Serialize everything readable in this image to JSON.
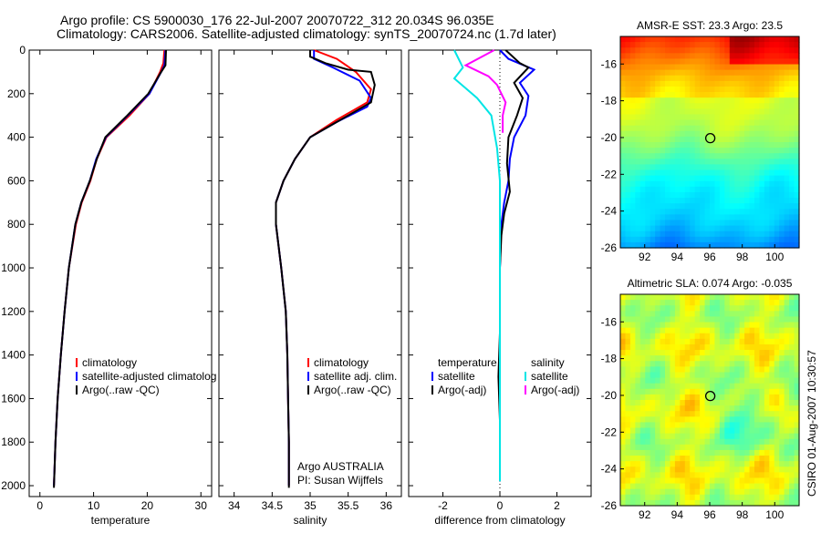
{
  "title_line1": "Argo profile: CS 5900030_176 22-Jul-2007 20070722_312 20.034S 96.035E",
  "title_line2": "Climatology: CARS2006. Satellite-adjusted climatology: synTS_20070724.nc (1.7d later)",
  "side_text": "CSIRO 01-Aug-2007 10:30:57",
  "chart_data": [
    {
      "id": "temperature",
      "type": "line",
      "xlabel": "temperature",
      "ylabel": "",
      "xlim": [
        -2,
        32
      ],
      "ylim": [
        2050,
        0
      ],
      "xticks": [
        0,
        10,
        20,
        30
      ],
      "yticks": [
        0,
        200,
        400,
        600,
        800,
        1000,
        1200,
        1400,
        1600,
        1800,
        2000
      ],
      "legend": [
        "climatology",
        "satellite-adjusted climatolog",
        "Argo(..raw -QC)"
      ],
      "colors": [
        "#ff0000",
        "#0000ff",
        "#000000"
      ],
      "series": [
        {
          "name": "climatology",
          "points": [
            [
              23.2,
              0
            ],
            [
              23.0,
              60
            ],
            [
              22.4,
              100
            ],
            [
              20.4,
              200
            ],
            [
              16.7,
              300
            ],
            [
              12.4,
              400
            ],
            [
              10.6,
              500
            ],
            [
              9.4,
              600
            ],
            [
              7.8,
              700
            ],
            [
              6.7,
              800
            ],
            [
              5.4,
              1000
            ],
            [
              4.6,
              1200
            ],
            [
              3.9,
              1400
            ],
            [
              3.3,
              1600
            ],
            [
              2.9,
              1800
            ],
            [
              2.6,
              2000
            ]
          ]
        },
        {
          "name": "satellite-adjusted climatolog",
          "points": [
            [
              23.4,
              0
            ],
            [
              23.2,
              70
            ],
            [
              22.6,
              100
            ],
            [
              20.4,
              200
            ],
            [
              16.4,
              300
            ],
            [
              12.3,
              400
            ],
            [
              10.5,
              500
            ],
            [
              9.3,
              600
            ],
            [
              7.7,
              700
            ],
            [
              6.6,
              800
            ],
            [
              5.4,
              1000
            ],
            [
              4.6,
              1200
            ],
            [
              3.9,
              1400
            ],
            [
              3.3,
              1600
            ],
            [
              2.9,
              1800
            ],
            [
              2.6,
              2000
            ]
          ]
        },
        {
          "name": "Argo(..raw -QC)",
          "points": [
            [
              23.5,
              0
            ],
            [
              23.4,
              70
            ],
            [
              22.6,
              100
            ],
            [
              20.2,
              200
            ],
            [
              16.3,
              300
            ],
            [
              12.2,
              400
            ],
            [
              10.6,
              500
            ],
            [
              9.3,
              600
            ],
            [
              7.7,
              700
            ],
            [
              6.6,
              800
            ],
            [
              5.4,
              1000
            ],
            [
              4.6,
              1200
            ],
            [
              3.9,
              1400
            ],
            [
              3.3,
              1600
            ],
            [
              2.9,
              1800
            ],
            [
              2.6,
              2010
            ]
          ]
        }
      ]
    },
    {
      "id": "salinity",
      "type": "line",
      "xlabel": "salinity",
      "xlim": [
        33.8,
        36.2
      ],
      "ylim": [
        2050,
        0
      ],
      "xticks": [
        34,
        34.5,
        35,
        35.5,
        36
      ],
      "legend": [
        "climatology",
        "satellite adj. clim.",
        "Argo(..raw -QC)"
      ],
      "colors": [
        "#ff0000",
        "#0000ff",
        "#000000"
      ],
      "annotations": [
        "Argo AUSTRALIA",
        "PI: Susan Wijffels"
      ],
      "series": [
        {
          "name": "climatology",
          "points": [
            [
              35.05,
              0
            ],
            [
              35.35,
              40
            ],
            [
              35.6,
              100
            ],
            [
              35.8,
              180
            ],
            [
              35.75,
              240
            ],
            [
              35.35,
              320
            ],
            [
              35.0,
              400
            ],
            [
              34.8,
              500
            ],
            [
              34.65,
              600
            ],
            [
              34.55,
              700
            ],
            [
              34.55,
              800
            ],
            [
              34.62,
              1000
            ],
            [
              34.68,
              1200
            ],
            [
              34.7,
              1400
            ],
            [
              34.71,
              1600
            ],
            [
              34.72,
              1800
            ],
            [
              34.72,
              2000
            ]
          ]
        },
        {
          "name": "satellite adj. clim.",
          "points": [
            [
              35.05,
              0
            ],
            [
              35.05,
              40
            ],
            [
              35.3,
              80
            ],
            [
              35.65,
              140
            ],
            [
              35.8,
              220
            ],
            [
              35.75,
              260
            ],
            [
              35.35,
              330
            ],
            [
              35.0,
              400
            ],
            [
              34.8,
              500
            ],
            [
              34.65,
              600
            ],
            [
              34.55,
              700
            ],
            [
              34.55,
              800
            ],
            [
              34.62,
              1000
            ],
            [
              34.68,
              1200
            ],
            [
              34.7,
              1400
            ],
            [
              34.71,
              1600
            ],
            [
              34.72,
              1800
            ],
            [
              34.72,
              2000
            ]
          ]
        },
        {
          "name": "Argo(..raw -QC)",
          "points": [
            [
              35.0,
              0
            ],
            [
              35.0,
              30
            ],
            [
              35.2,
              60
            ],
            [
              35.5,
              90
            ],
            [
              35.8,
              100
            ],
            [
              35.85,
              160
            ],
            [
              35.8,
              240
            ],
            [
              35.4,
              320
            ],
            [
              35.0,
              400
            ],
            [
              34.8,
              500
            ],
            [
              34.65,
              600
            ],
            [
              34.55,
              700
            ],
            [
              34.55,
              800
            ],
            [
              34.62,
              1000
            ],
            [
              34.68,
              1200
            ],
            [
              34.7,
              1400
            ],
            [
              34.71,
              1600
            ],
            [
              34.72,
              1800
            ],
            [
              34.72,
              2010
            ]
          ]
        }
      ]
    },
    {
      "id": "difference",
      "type": "line",
      "xlabel": "difference from climatology",
      "xlim": [
        -3.2,
        3.2
      ],
      "ylim": [
        2050,
        0
      ],
      "xticks": [
        -2,
        0,
        2
      ],
      "legend_groups": [
        {
          "title": "temperature",
          "items": [
            "satellite",
            "Argo(-adj)"
          ],
          "colors": [
            "#0000ff",
            "#000000"
          ]
        },
        {
          "title": "salinity",
          "items": [
            "satellite",
            "Argo(-adj)"
          ],
          "colors": [
            "#00e5e5",
            "#ff00ff"
          ]
        }
      ],
      "series": [
        {
          "name": "satellite",
          "group": "temperature",
          "points": [
            [
              0,
              0
            ],
            [
              0.3,
              40
            ],
            [
              1.2,
              90
            ],
            [
              0.7,
              150
            ],
            [
              1.0,
              210
            ],
            [
              0.9,
              300
            ],
            [
              0.5,
              400
            ],
            [
              0.35,
              500
            ],
            [
              0.3,
              600
            ],
            [
              0.15,
              700
            ],
            [
              0.05,
              800
            ],
            [
              0,
              1000
            ],
            [
              0,
              1200
            ],
            [
              0,
              1400
            ],
            [
              0,
              1600
            ],
            [
              0,
              1800
            ],
            [
              0,
              1980
            ]
          ]
        },
        {
          "name": "Argo(-adj)",
          "group": "temperature",
          "points": [
            [
              0.2,
              0
            ],
            [
              0.7,
              60
            ],
            [
              1.0,
              80
            ],
            [
              0.5,
              150
            ],
            [
              0.8,
              220
            ],
            [
              0.6,
              300
            ],
            [
              0.3,
              400
            ],
            [
              0.25,
              520
            ],
            [
              0.35,
              650
            ],
            [
              0.15,
              750
            ],
            [
              0.05,
              850
            ],
            [
              0,
              1000
            ],
            [
              0,
              1300
            ],
            [
              -0.05,
              1500
            ],
            [
              0,
              1700
            ],
            [
              0,
              1980
            ]
          ]
        },
        {
          "name": "satellite",
          "group": "salinity",
          "points": [
            [
              -1.6,
              0
            ],
            [
              -1.3,
              80
            ],
            [
              -1.6,
              130
            ],
            [
              -0.8,
              220
            ],
            [
              -0.3,
              300
            ],
            [
              -0.1,
              450
            ],
            [
              0,
              600
            ],
            [
              0,
              800
            ],
            [
              0,
              1200
            ],
            [
              0,
              1600
            ],
            [
              0,
              1980
            ]
          ]
        },
        {
          "name": "Argo(-adj)",
          "group": "salinity",
          "points": [
            [
              -0.2,
              0
            ],
            [
              -1.2,
              70
            ],
            [
              -0.4,
              120
            ],
            [
              -0.1,
              160
            ],
            [
              0.2,
              240
            ],
            [
              0.1,
              300
            ],
            [
              0.1,
              380
            ]
          ]
        }
      ]
    },
    {
      "id": "sst-map",
      "type": "heatmap",
      "title": "AMSR-E SST: 23.3 Argo: 23.5",
      "xlim": [
        90.5,
        101.5
      ],
      "ylim": [
        -26,
        -14.5
      ],
      "xticks": [
        92,
        94,
        96,
        98,
        100
      ],
      "yticks": [
        -16,
        -18,
        -20,
        -22,
        -24,
        -26
      ],
      "marker": [
        96.035,
        -20.034
      ]
    },
    {
      "id": "sla-map",
      "type": "heatmap",
      "title": "Altimetric SLA: 0.074 Argo: -0.035",
      "xlim": [
        90.5,
        101.5
      ],
      "ylim": [
        -26,
        -14.5
      ],
      "xticks": [
        92,
        94,
        96,
        98,
        100
      ],
      "yticks": [
        -16,
        -18,
        -20,
        -22,
        -24,
        -26
      ],
      "marker": [
        96.035,
        -20.034
      ]
    }
  ]
}
